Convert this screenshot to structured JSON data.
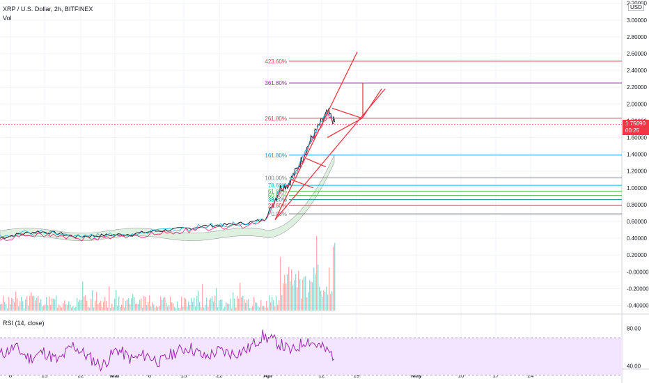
{
  "header": {
    "symbol_title": "XRP / U.S. Dollar, 2h, BITFINEX",
    "volume_label": "Vol"
  },
  "currency_unit": "USD",
  "current_price": {
    "value": "1.75690",
    "countdown": "00:25"
  },
  "rsi_label": "RSI (14, close)",
  "colors": {
    "background": "#ffffff",
    "grid": "#f0f3fa",
    "candle_up": "#26a69a",
    "candle_down": "#ef5350",
    "drawing_red": "#f23645",
    "rsi_line": "#9c27b0",
    "rsi_band": "#f3e5ff"
  },
  "chart_data": {
    "type": "line",
    "title": "XRP / U.S. Dollar, 2h, BITFINEX",
    "y_axis": {
      "ticks": [
        "3.20000",
        "3.00000",
        "2.80000",
        "2.60000",
        "2.40000",
        "2.20000",
        "2.00000",
        "1.80000",
        "1.60000",
        "1.40000",
        "1.20000",
        "1.00000",
        "0.80000",
        "0.60000",
        "0.40000",
        "0.20000",
        "-0.00000",
        "-0.20000",
        "-0.40000"
      ],
      "tick_values": [
        3.2,
        3.0,
        2.8,
        2.6,
        2.4,
        2.2,
        2.0,
        1.8,
        1.6,
        1.4,
        1.2,
        1.0,
        0.8,
        0.6,
        0.4,
        0.2,
        0,
        -0.2,
        -0.4
      ],
      "ylim": [
        -0.45,
        3.25
      ]
    },
    "x_axis": {
      "ticks": [
        "8",
        "15",
        "22",
        "Mar",
        "8",
        "15",
        "22",
        "Apr",
        "12",
        "19",
        "May",
        "10",
        "17",
        "24"
      ]
    },
    "price_series": {
      "name": "XRP/USD",
      "x_ticks_index": [
        8,
        15,
        22,
        "Mar",
        8,
        15,
        22,
        "Apr",
        12
      ],
      "approx_close": [
        0.4,
        0.45,
        0.48,
        0.46,
        0.42,
        0.43,
        0.44,
        0.45,
        0.48,
        0.5,
        0.52,
        0.55,
        0.56,
        0.58,
        0.62,
        0.8,
        1.0,
        1.05,
        1.2,
        1.4,
        1.6,
        1.75,
        1.9,
        1.76
      ]
    },
    "fib_levels": [
      {
        "label": "423.60%",
        "value": 2.51,
        "color": "#f23645"
      },
      {
        "label": "361.80%",
        "value": 2.25,
        "color": "#9c27b0"
      },
      {
        "label": "261.80%",
        "value": 1.83,
        "color": "#f23645"
      },
      {
        "label": "161.80%",
        "value": 1.39,
        "color": "#2196f3"
      },
      {
        "label": "100.00%",
        "value": 1.12,
        "color": "#787b86"
      },
      {
        "label": "78.60%",
        "value": 1.03,
        "color": "#00bcd4"
      },
      {
        "label": "61.80%",
        "value": 0.96,
        "color": "#4caf50"
      },
      {
        "label": "50.00%",
        "value": 0.91,
        "color": "#4caf50"
      },
      {
        "label": "38.20%",
        "value": 0.86,
        "color": "#009688"
      },
      {
        "label": "23.60%",
        "value": 0.79,
        "color": "#f23645"
      },
      {
        "label": "0.00%",
        "value": 0.69,
        "color": "#787b86"
      }
    ],
    "rsi": {
      "name": "RSI (14, close)",
      "ticks": [
        "80.00",
        "40.00"
      ],
      "upper_band": 70,
      "lower_band": 30,
      "approx_values": [
        52,
        60,
        48,
        55,
        45,
        62,
        50,
        40,
        58,
        47,
        52,
        44,
        55,
        60,
        49,
        56,
        53,
        58,
        72,
        65,
        55,
        68,
        60,
        50
      ]
    },
    "grid": true,
    "legend": "top-left"
  }
}
